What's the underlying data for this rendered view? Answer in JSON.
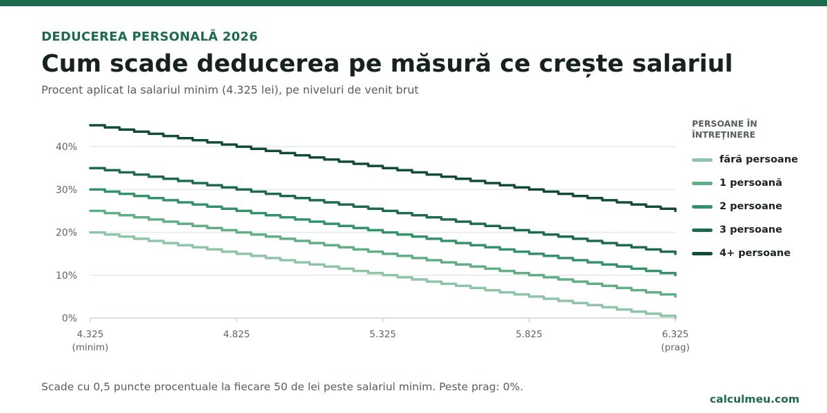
{
  "header": {
    "kicker": "DEDUCEREA PERSONALĂ 2026",
    "title": "Cum scade deducerea pe măsură ce crește salariul",
    "subtitle": "Procent aplicat la salariul minim (4.325 lei), pe niveluri de venit brut"
  },
  "footer": {
    "note": "Scade cu 0,5 puncte procentuale la fiecare 50 de lei peste salariul minim. Peste prag: 0%.",
    "brand": "calculmeu.com"
  },
  "colors": {
    "accent": "#1b6b4c",
    "grid": "#e4e8e6",
    "axis": "#cfd5d3",
    "tick_text": "#5c6562"
  },
  "chart_data": {
    "type": "line",
    "step_size": 50,
    "step_drop": 0.5,
    "xlim": [
      4325,
      6325
    ],
    "ylim": [
      0,
      45
    ],
    "x_ticks": [
      {
        "value": 4325,
        "label": "4.325",
        "sublabel": "(minim)"
      },
      {
        "value": 4825,
        "label": "4.825",
        "sublabel": ""
      },
      {
        "value": 5325,
        "label": "5.325",
        "sublabel": ""
      },
      {
        "value": 5825,
        "label": "5.825",
        "sublabel": ""
      },
      {
        "value": 6325,
        "label": "6.325",
        "sublabel": "(prag)"
      }
    ],
    "y_ticks": [
      {
        "value": 0,
        "label": "0%"
      },
      {
        "value": 10,
        "label": "10%"
      },
      {
        "value": 20,
        "label": "20%"
      },
      {
        "value": 30,
        "label": "30%"
      },
      {
        "value": 40,
        "label": "40%"
      }
    ],
    "legend_title": "PERSOANE ÎN ÎNTREȚINERE",
    "series": [
      {
        "name": "fără persoane",
        "start": 20,
        "end": 0,
        "color": "#8ec5a8"
      },
      {
        "name": "1 persoană",
        "start": 25,
        "end": 5,
        "color": "#5fae86"
      },
      {
        "name": "2 persoane",
        "start": 30,
        "end": 10,
        "color": "#33926a"
      },
      {
        "name": "3 persoane",
        "start": 35,
        "end": 15,
        "color": "#1b6b4c"
      },
      {
        "name": "4+ persoane",
        "start": 45,
        "end": 25,
        "color": "#0f4c35"
      }
    ]
  }
}
